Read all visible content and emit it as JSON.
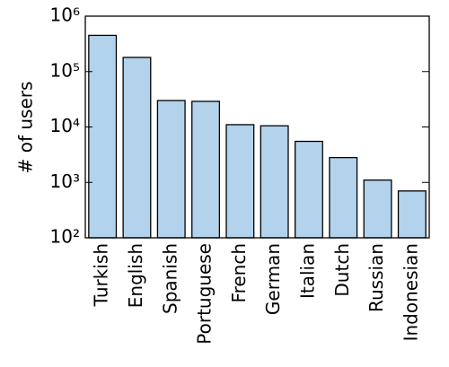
{
  "chart_data": {
    "type": "bar",
    "ylabel": "# of users",
    "categories": [
      "Turkish",
      "English",
      "Spanish",
      "Portuguese",
      "French",
      "German",
      "Italian",
      "Dutch",
      "Russian",
      "Indonesian"
    ],
    "values": [
      450000,
      180000,
      30000,
      29000,
      11000,
      10500,
      5500,
      2800,
      1100,
      700
    ],
    "color": "#b3d3ec",
    "log_scale": true,
    "ylim": [
      100,
      1000000
    ],
    "yticks": [
      {
        "value": 100,
        "label": "10²"
      },
      {
        "value": 1000,
        "label": "10³"
      },
      {
        "value": 10000,
        "label": "10⁴"
      },
      {
        "value": 100000,
        "label": "10⁵"
      },
      {
        "value": 1000000,
        "label": "10⁶"
      }
    ]
  }
}
